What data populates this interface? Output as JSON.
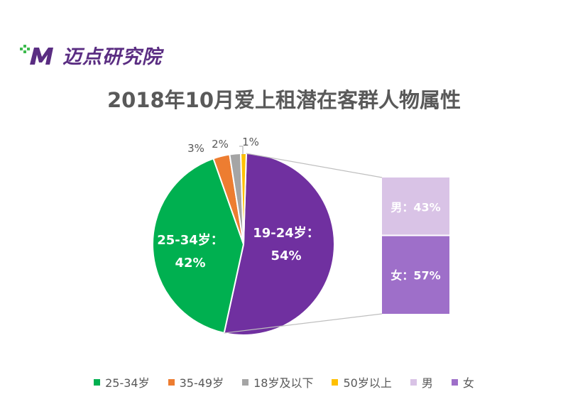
{
  "logo": {
    "text": "迈点研究院",
    "brand_color": "#5a2d82",
    "accent_color": "#3dbb4e"
  },
  "title": "2018年10月爱上租潜在客群人物属性",
  "chart_data": {
    "type": "pie",
    "title": "2018年10月爱上租潜在客群人物属性",
    "slices": [
      {
        "name": "19-24岁",
        "value": 54,
        "label": "19-24岁：",
        "value_label": "54%",
        "color": "#7030a0"
      },
      {
        "name": "25-34岁",
        "value": 42,
        "label": "25-34岁：",
        "value_label": "42%",
        "color": "#00b050"
      },
      {
        "name": "35-49岁",
        "value": 3,
        "value_label": "3%",
        "color": "#ed7d31"
      },
      {
        "name": "18岁及以下",
        "value": 2,
        "value_label": "2%",
        "color": "#a5a5a5"
      },
      {
        "name": "50岁以上",
        "value": 1,
        "value_label": "1%",
        "color": "#ffc000"
      }
    ],
    "breakdown": {
      "of": "19-24岁",
      "type": "stacked-bar",
      "segments": [
        {
          "name": "男",
          "value": 43,
          "label": "男：43%",
          "color": "#d9c3e6"
        },
        {
          "name": "女",
          "value": 57,
          "label": "女：57%",
          "color": "#9e6fc9"
        }
      ]
    },
    "legend": {
      "placement": "bottom",
      "items": [
        {
          "label": "25-34岁",
          "color": "#00b050"
        },
        {
          "label": "35-49岁",
          "color": "#ed7d31"
        },
        {
          "label": "18岁及以下",
          "color": "#a5a5a5"
        },
        {
          "label": "50岁以上",
          "color": "#ffc000"
        },
        {
          "label": "男",
          "color": "#d9c3e6"
        },
        {
          "label": "女",
          "color": "#9e6fc9"
        }
      ]
    }
  }
}
